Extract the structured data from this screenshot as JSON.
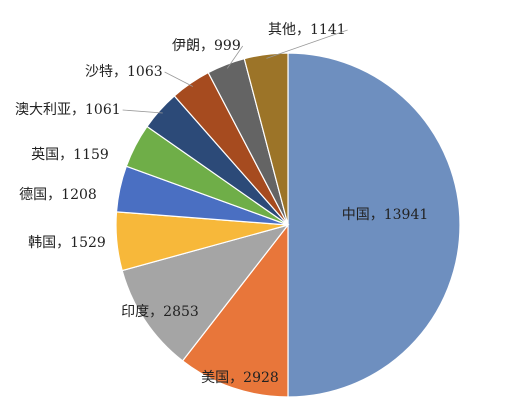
{
  "chart_data": {
    "type": "pie",
    "values": [
      13941,
      2928,
      2853,
      1529,
      1208,
      1159,
      1061,
      1063,
      999,
      1141
    ],
    "value_labels": [
      "中国，13941",
      "美国，2928",
      "印度，2853",
      "韩国，1529",
      "德国，1208",
      "英国，1159",
      "澳大利亚，1061",
      "沙特，1063",
      "伊朗，999",
      "其他，1141"
    ],
    "colors": [
      "#6e8fbf",
      "#e8763a",
      "#a5a5a5",
      "#f7b83a",
      "#4a6fc2",
      "#6fae48",
      "#2c4a78",
      "#a64b1f",
      "#646464",
      "#9c7428"
    ]
  }
}
